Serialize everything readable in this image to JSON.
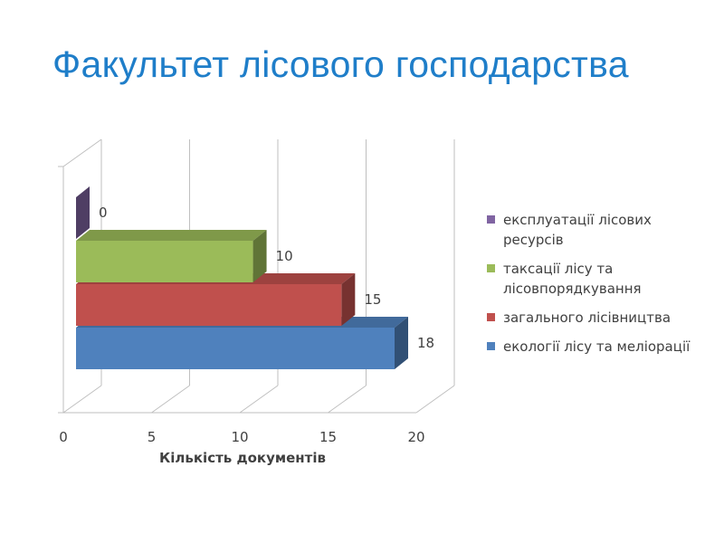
{
  "title": "Факультет лісового господарства",
  "chart_data": {
    "type": "bar",
    "orientation": "horizontal",
    "style": "3d-clustered",
    "xlabel": "Кількість документів",
    "ylabel": "",
    "xlim": [
      0,
      20
    ],
    "x_ticks": [
      "0",
      "5",
      "10",
      "15",
      "20"
    ],
    "grid": true,
    "legend_position": "right",
    "series": [
      {
        "name": "екології лісу та меліорації",
        "value": 18,
        "label": "18",
        "color": "#4f81bd"
      },
      {
        "name": "загального лісівництва",
        "value": 15,
        "label": "15",
        "color": "#c0504d"
      },
      {
        "name": "таксації лісу та лісовпорядкування",
        "value": 10,
        "label": "10",
        "color": "#9bbb59"
      },
      {
        "name": "експлуатації лісових ресурсів",
        "value": 0,
        "label": "0",
        "color": "#8064a2"
      }
    ]
  }
}
